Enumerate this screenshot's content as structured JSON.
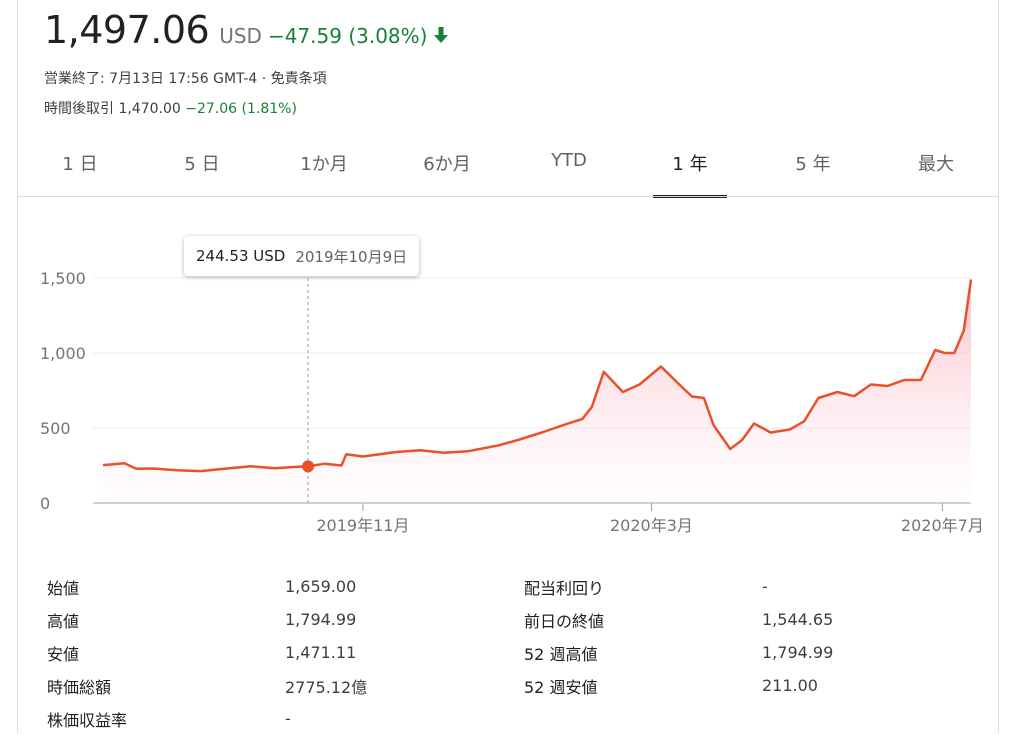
{
  "header": {
    "price": "1,497.06",
    "currency": "USD",
    "change": "−47.59 (3.08%)",
    "status_line": "営業終了: 7月13日 17:56 GMT-4 · 免責条項",
    "after_hours_label": "時間後取引",
    "after_hours_price": "1,470.00",
    "after_hours_change": "−27.06 (1.81%)"
  },
  "tabs": [
    {
      "label": "1 日"
    },
    {
      "label": "5 日"
    },
    {
      "label": "1か月"
    },
    {
      "label": "6か月"
    },
    {
      "label": "YTD"
    },
    {
      "label": "1 年",
      "active": true
    },
    {
      "label": "5 年"
    },
    {
      "label": "最大"
    }
  ],
  "tooltip": {
    "value": "244.53 USD",
    "date": "2019年10月9日"
  },
  "colors": {
    "line": "#e8512a",
    "positive": "#188038",
    "fill": "#fde3e8"
  },
  "chart_data": {
    "type": "area",
    "title": "",
    "xlabel": "",
    "ylabel": "",
    "ylim": [
      0,
      1600
    ],
    "y_ticks": [
      0,
      500,
      1000,
      1500
    ],
    "y_tick_labels": [
      "0",
      "500",
      "1,000",
      "1,500"
    ],
    "x_ticks": [
      {
        "date": "2019-11-01",
        "label": "2019年11月"
      },
      {
        "date": "2020-03-01",
        "label": "2020年3月"
      },
      {
        "date": "2020-07-01",
        "label": "2020年7月"
      }
    ],
    "x_range": [
      "2019-07-15",
      "2020-07-13"
    ],
    "highlight": {
      "date": "2019-10-09",
      "value": 244.53
    },
    "series": [
      {
        "x": [
          "2019-07-15",
          "2019-07-24",
          "2019-07-29",
          "2019-08-05",
          "2019-08-15",
          "2019-08-25",
          "2019-09-05",
          "2019-09-15",
          "2019-09-25",
          "2019-10-03",
          "2019-10-09",
          "2019-10-16",
          "2019-10-23",
          "2019-10-25",
          "2019-11-01",
          "2019-11-15",
          "2019-11-25",
          "2019-12-05",
          "2019-12-15",
          "2019-12-20",
          "2019-12-28",
          "2020-01-05",
          "2020-01-15",
          "2020-01-25",
          "2020-02-01",
          "2020-02-05",
          "2020-02-10",
          "2020-02-18",
          "2020-02-25",
          "2020-03-05",
          "2020-03-12",
          "2020-03-18",
          "2020-03-23",
          "2020-03-27",
          "2020-04-03",
          "2020-04-08",
          "2020-04-13",
          "2020-04-20",
          "2020-04-28",
          "2020-05-04",
          "2020-05-10",
          "2020-05-18",
          "2020-05-25",
          "2020-06-01",
          "2020-06-08",
          "2020-06-15",
          "2020-06-22",
          "2020-06-28",
          "2020-07-02",
          "2020-07-06",
          "2020-07-10",
          "2020-07-13"
        ],
        "values": [
          253,
          265,
          228,
          230,
          218,
          213,
          230,
          245,
          232,
          240,
          244.53,
          262,
          250,
          325,
          310,
          340,
          352,
          335,
          345,
          360,
          385,
          420,
          470,
          525,
          560,
          640,
          875,
          740,
          790,
          910,
          800,
          710,
          700,
          520,
          360,
          420,
          530,
          470,
          490,
          545,
          700,
          740,
          712,
          790,
          780,
          820,
          820,
          1020,
          1000,
          1000,
          1150,
          1490
        ]
      }
    ]
  },
  "stats": {
    "left": [
      {
        "label": "始値",
        "value": "1,659.00"
      },
      {
        "label": "高値",
        "value": "1,794.99"
      },
      {
        "label": "安値",
        "value": "1,471.11"
      },
      {
        "label": "時価総額",
        "value": "2775.12億"
      },
      {
        "label": "株価収益率",
        "value": "-"
      }
    ],
    "right": [
      {
        "label": "配当利回り",
        "value": "-"
      },
      {
        "label": "前日の終値",
        "value": "1,544.65"
      },
      {
        "label": "52 週高値",
        "value": "1,794.99"
      },
      {
        "label": "52 週安値",
        "value": "211.00"
      }
    ]
  }
}
